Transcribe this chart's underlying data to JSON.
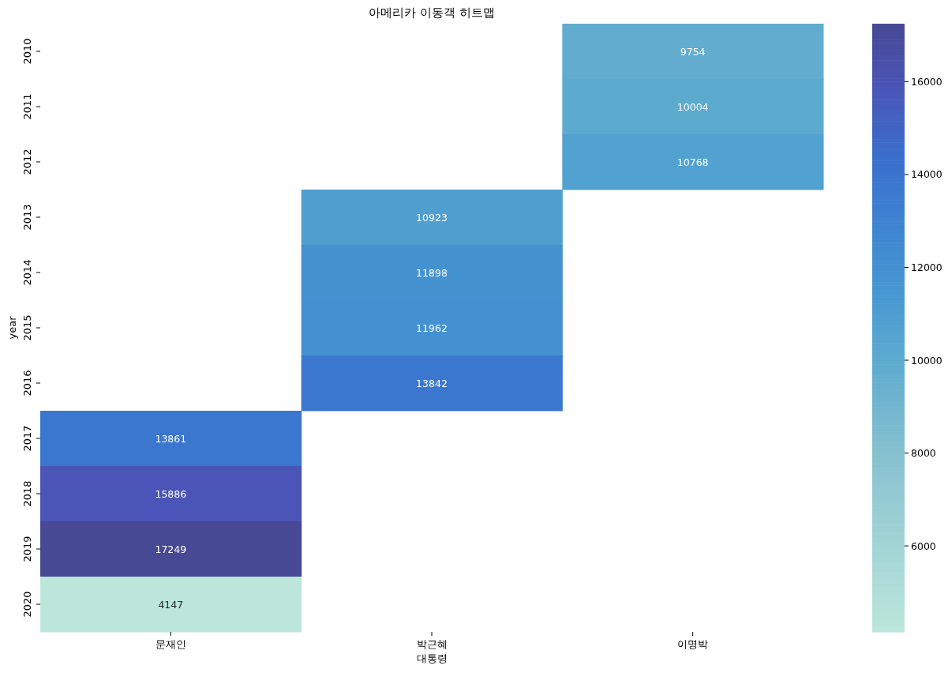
{
  "chart_data": {
    "type": "heatmap",
    "title": "아메리카 이동객 히트맵",
    "xlabel": "대통령",
    "ylabel": "year",
    "categories": [
      "문재인",
      "박근혜",
      "이명박"
    ],
    "y_categories": [
      "2010",
      "2011",
      "2012",
      "2013",
      "2014",
      "2015",
      "2016",
      "2017",
      "2018",
      "2019",
      "2020"
    ],
    "cells": [
      [
        null,
        null,
        9754
      ],
      [
        null,
        null,
        10004
      ],
      [
        null,
        null,
        10768
      ],
      [
        null,
        10923,
        null
      ],
      [
        null,
        11898,
        null
      ],
      [
        null,
        11962,
        null
      ],
      [
        null,
        13842,
        null
      ],
      [
        13861,
        null,
        null
      ],
      [
        15886,
        null,
        null
      ],
      [
        17249,
        null,
        null
      ],
      [
        4147,
        null,
        null
      ]
    ],
    "data_labels": true,
    "clim": [
      4147,
      17249
    ],
    "cticks": [
      6000,
      8000,
      10000,
      12000,
      14000,
      16000
    ]
  }
}
